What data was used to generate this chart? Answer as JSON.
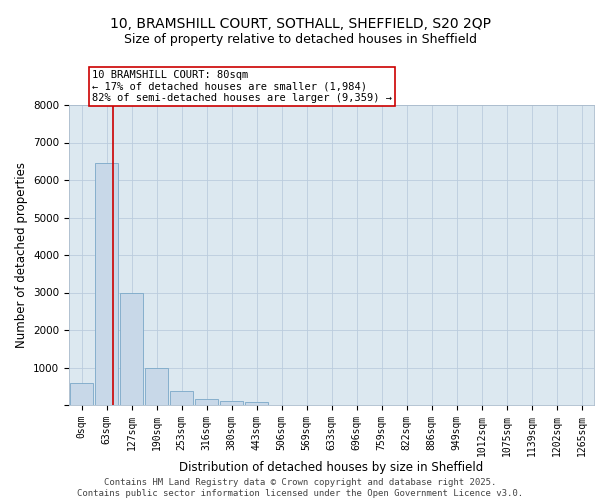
{
  "title_line1": "10, BRAMSHILL COURT, SOTHALL, SHEFFIELD, S20 2QP",
  "title_line2": "Size of property relative to detached houses in Sheffield",
  "xlabel": "Distribution of detached houses by size in Sheffield",
  "ylabel": "Number of detached properties",
  "bar_labels": [
    "0sqm",
    "63sqm",
    "127sqm",
    "190sqm",
    "253sqm",
    "316sqm",
    "380sqm",
    "443sqm",
    "506sqm",
    "569sqm",
    "633sqm",
    "696sqm",
    "759sqm",
    "822sqm",
    "886sqm",
    "949sqm",
    "1012sqm",
    "1075sqm",
    "1139sqm",
    "1202sqm",
    "1265sqm"
  ],
  "bar_values": [
    600,
    6450,
    3000,
    1000,
    370,
    150,
    120,
    80,
    0,
    0,
    0,
    0,
    0,
    0,
    0,
    0,
    0,
    0,
    0,
    0,
    0
  ],
  "bar_color": "#c8d8e8",
  "bar_edge_color": "#7aa8c8",
  "red_line_x": 1.27,
  "annotation_line_color": "#cc0000",
  "annotation_box_text": "10 BRAMSHILL COURT: 80sqm\n← 17% of detached houses are smaller (1,984)\n82% of semi-detached houses are larger (9,359) →",
  "annotation_box_color": "#cc0000",
  "annotation_box_fill": "#ffffff",
  "ylim": [
    0,
    8000
  ],
  "yticks": [
    0,
    1000,
    2000,
    3000,
    4000,
    5000,
    6000,
    7000,
    8000
  ],
  "grid_color": "#bbccdd",
  "bg_color": "#dce8f0",
  "footer_line1": "Contains HM Land Registry data © Crown copyright and database right 2025.",
  "footer_line2": "Contains public sector information licensed under the Open Government Licence v3.0.",
  "title_fontsize": 10,
  "subtitle_fontsize": 9,
  "axis_label_fontsize": 8.5,
  "tick_fontsize": 7,
  "annotation_fontsize": 7.5,
  "footer_fontsize": 6.5
}
